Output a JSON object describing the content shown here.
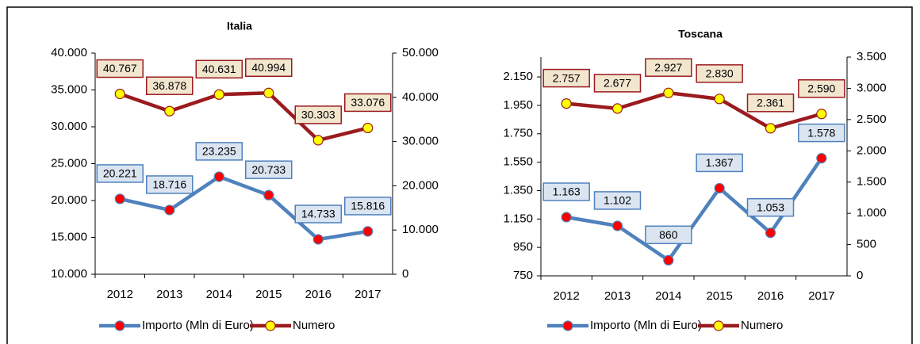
{
  "chart_data": [
    {
      "type": "line",
      "title": "Italia",
      "categories": [
        "2012",
        "2013",
        "2014",
        "2015",
        "2016",
        "2017"
      ],
      "ylim": [
        10000,
        40000
      ],
      "yticks": [
        {
          "value": 10000,
          "label": "10.000"
        },
        {
          "value": 15000,
          "label": "15.000"
        },
        {
          "value": 20000,
          "label": "20.000"
        },
        {
          "value": 25000,
          "label": "25.000"
        },
        {
          "value": 30000,
          "label": "30.000"
        },
        {
          "value": 35000,
          "label": "35.000"
        },
        {
          "value": 40000,
          "label": "40.000"
        }
      ],
      "y2lim": [
        0,
        50000
      ],
      "y2ticks": [
        0,
        {
          "value": 10000,
          "label": "10.000"
        },
        {
          "value": 20000,
          "label": "20.000"
        },
        {
          "value": 30000,
          "label": "30.000"
        },
        {
          "value": 40000,
          "label": "40.000"
        },
        {
          "value": 50000,
          "label": "50.000"
        }
      ],
      "legend": "bottom",
      "series": [
        {
          "name": "Importo (Mln di Euro)",
          "color": "#4f81bd",
          "marker_color": "#ff0000",
          "label_fill": "#dbe5f1",
          "axis": "y",
          "values": [
            20221,
            18716,
            23235,
            20733,
            14733,
            15816
          ],
          "value_labels": [
            "20.221",
            "18.716",
            "23.235",
            "20.733",
            "14.733",
            "15.816"
          ]
        },
        {
          "name": "Numero",
          "color": "#9b1b1f",
          "marker_color": "#ffff00",
          "label_fill": "#f2e6cf",
          "axis": "y2",
          "values": [
            40767,
            36878,
            40631,
            40994,
            30303,
            33076
          ],
          "value_labels": [
            "40.767",
            "36.878",
            "40.631",
            "40.994",
            "30.303",
            "33.076"
          ]
        }
      ]
    },
    {
      "type": "line",
      "title": "Toscana",
      "categories": [
        "2012",
        "2013",
        "2014",
        "2015",
        "2016",
        "2017"
      ],
      "ylim": [
        750,
        2290
      ],
      "yticks": [
        750,
        950,
        {
          "value": 1150,
          "label": "1.150"
        },
        {
          "value": 1350,
          "label": "1.350"
        },
        {
          "value": 1550,
          "label": "1.550"
        },
        {
          "value": 1750,
          "label": "1.750"
        },
        {
          "value": 1950,
          "label": "1.950"
        },
        {
          "value": 2150,
          "label": "2.150"
        }
      ],
      "y2lim": [
        0,
        3500
      ],
      "y2ticks": [
        0,
        500,
        {
          "value": 1000,
          "label": "1.000"
        },
        {
          "value": 1500,
          "label": "1.500"
        },
        {
          "value": 2000,
          "label": "2.000"
        },
        {
          "value": 2500,
          "label": "2.500"
        },
        {
          "value": 3000,
          "label": "3.000"
        },
        {
          "value": 3500,
          "label": "3.500"
        }
      ],
      "legend": "bottom",
      "series": [
        {
          "name": "Importo (Mln di Euro)",
          "color": "#4f81bd",
          "marker_color": "#ff0000",
          "label_fill": "#dbe5f1",
          "axis": "y",
          "values": [
            1163,
            1102,
            860,
            1367,
            1053,
            1578
          ],
          "value_labels": [
            "1.163",
            "1.102",
            "860",
            "1.367",
            "1.053",
            "1.578"
          ]
        },
        {
          "name": "Numero",
          "color": "#9b1b1f",
          "marker_color": "#ffff00",
          "label_fill": "#f2e6cf",
          "axis": "y2",
          "values": [
            2757,
            2677,
            2927,
            2830,
            2361,
            2590
          ],
          "value_labels": [
            "2.757",
            "2.677",
            "2.927",
            "2.830",
            "2.361",
            "2.590"
          ]
        }
      ]
    }
  ]
}
